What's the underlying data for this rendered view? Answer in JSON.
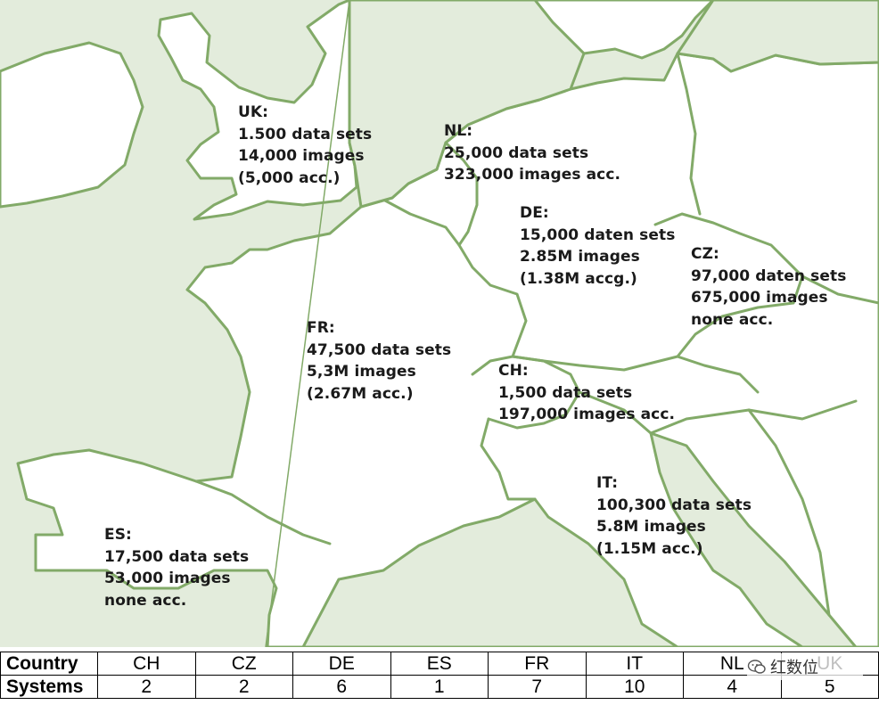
{
  "regions": [
    {
      "code": "UK",
      "lines": [
        "UK:",
        "1.500 data sets",
        "14,000 images",
        "(5,000 acc.)"
      ]
    },
    {
      "code": "NL",
      "lines": [
        "NL:",
        "25,000 data sets",
        "323,000 images acc."
      ]
    },
    {
      "code": "DE",
      "lines": [
        "DE:",
        "15,000 daten sets",
        "2.85M images",
        "(1.38M accg.)"
      ]
    },
    {
      "code": "CZ",
      "lines": [
        "CZ:",
        "97,000 daten sets",
        "675,000 images",
        "none acc."
      ]
    },
    {
      "code": "FR",
      "lines": [
        "FR:",
        "47,500 data sets",
        "5,3M images",
        "(2.67M acc.)"
      ]
    },
    {
      "code": "CH",
      "lines": [
        "CH:",
        "1,500 data sets",
        "197,000 images acc."
      ]
    },
    {
      "code": "IT",
      "lines": [
        "IT:",
        "100,300 data sets",
        "5.8M images",
        "(1.15M acc.)"
      ]
    },
    {
      "code": "ES",
      "lines": [
        "ES:",
        "17,500 data sets",
        "53,000 images",
        "none acc."
      ]
    }
  ],
  "table": {
    "row1_label": "Country",
    "row2_label": "Systems",
    "countries": [
      "CH",
      "CZ",
      "DE",
      "ES",
      "FR",
      "IT",
      "NL",
      "UK"
    ],
    "systems": [
      "2",
      "2",
      "6",
      "1",
      "7",
      "10",
      "4",
      "5"
    ]
  },
  "watermark": {
    "text": "红数位",
    "icon": "wechat-icon"
  },
  "colors": {
    "sea": "#e3ecdc",
    "land": "#ffffff",
    "border": "#82aa68",
    "text": "#1a1a1a"
  }
}
